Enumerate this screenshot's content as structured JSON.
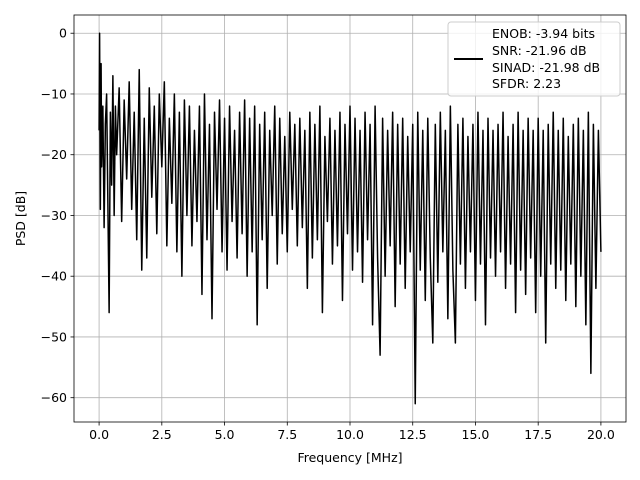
{
  "chart_data": {
    "type": "line",
    "title": "",
    "xlabel": "Frequency [MHz]",
    "ylabel": "PSD [dB]",
    "xlim": [
      -1.0,
      21.0
    ],
    "ylim": [
      -64.0,
      3.0
    ],
    "x_ticks": [
      0.0,
      2.5,
      5.0,
      7.5,
      10.0,
      12.5,
      15.0,
      17.5,
      20.0
    ],
    "x_tick_labels": [
      "0.0",
      "2.5",
      "5.0",
      "7.5",
      "10.0",
      "12.5",
      "15.0",
      "17.5",
      "20.0"
    ],
    "y_ticks": [
      0,
      -10,
      -20,
      -30,
      -40,
      -50,
      -60
    ],
    "y_tick_labels": [
      "0",
      "−10",
      "−20",
      "−30",
      "−40",
      "−50",
      "−60"
    ],
    "grid": true,
    "legend_position": "top-right",
    "series": [
      {
        "name": "ENOB: -3.94 bits\nSNR: -21.96 dB\nSINAD: -21.98 dB\nSFDR: 2.23",
        "legend_lines": [
          "ENOB: -3.94 bits",
          "SNR: -21.96 dB",
          "SINAD: -21.98 dB",
          "SFDR: 2.23"
        ],
        "color": "#000000",
        "points": [
          [
            0.0,
            -16
          ],
          [
            0.02,
            0.0
          ],
          [
            0.05,
            -29
          ],
          [
            0.08,
            -5
          ],
          [
            0.1,
            -22
          ],
          [
            0.15,
            -12
          ],
          [
            0.2,
            -32
          ],
          [
            0.25,
            -15
          ],
          [
            0.3,
            -10
          ],
          [
            0.35,
            -28
          ],
          [
            0.4,
            -46
          ],
          [
            0.45,
            -13
          ],
          [
            0.5,
            -25
          ],
          [
            0.55,
            -7
          ],
          [
            0.6,
            -30
          ],
          [
            0.65,
            -12
          ],
          [
            0.7,
            -20
          ],
          [
            0.8,
            -9
          ],
          [
            0.9,
            -31
          ],
          [
            1.0,
            -11
          ],
          [
            1.1,
            -24
          ],
          [
            1.2,
            -8
          ],
          [
            1.3,
            -29
          ],
          [
            1.4,
            -13
          ],
          [
            1.5,
            -34
          ],
          [
            1.6,
            -6
          ],
          [
            1.7,
            -39
          ],
          [
            1.8,
            -14
          ],
          [
            1.9,
            -37
          ],
          [
            2.0,
            -9
          ],
          [
            2.1,
            -27
          ],
          [
            2.2,
            -12
          ],
          [
            2.3,
            -33
          ],
          [
            2.4,
            -10
          ],
          [
            2.5,
            -22
          ],
          [
            2.6,
            -8
          ],
          [
            2.7,
            -35
          ],
          [
            2.8,
            -14
          ],
          [
            2.9,
            -28
          ],
          [
            3.0,
            -10
          ],
          [
            3.1,
            -36
          ],
          [
            3.2,
            -13
          ],
          [
            3.3,
            -40
          ],
          [
            3.4,
            -11
          ],
          [
            3.5,
            -30
          ],
          [
            3.6,
            -12
          ],
          [
            3.7,
            -35
          ],
          [
            3.8,
            -16
          ],
          [
            3.9,
            -31
          ],
          [
            4.0,
            -12
          ],
          [
            4.1,
            -43
          ],
          [
            4.2,
            -10
          ],
          [
            4.3,
            -34
          ],
          [
            4.4,
            -15
          ],
          [
            4.5,
            -47
          ],
          [
            4.6,
            -13
          ],
          [
            4.7,
            -29
          ],
          [
            4.8,
            -11
          ],
          [
            4.9,
            -36
          ],
          [
            5.0,
            -14
          ],
          [
            5.1,
            -39
          ],
          [
            5.2,
            -12
          ],
          [
            5.3,
            -31
          ],
          [
            5.4,
            -16
          ],
          [
            5.5,
            -37
          ],
          [
            5.6,
            -13
          ],
          [
            5.7,
            -33
          ],
          [
            5.8,
            -11
          ],
          [
            5.9,
            -40
          ],
          [
            6.0,
            -14
          ],
          [
            6.1,
            -36
          ],
          [
            6.2,
            -12
          ],
          [
            6.3,
            -48
          ],
          [
            6.4,
            -15
          ],
          [
            6.5,
            -34
          ],
          [
            6.6,
            -13
          ],
          [
            6.7,
            -42
          ],
          [
            6.8,
            -16
          ],
          [
            6.9,
            -30
          ],
          [
            7.0,
            -12
          ],
          [
            7.1,
            -38
          ],
          [
            7.2,
            -14
          ],
          [
            7.3,
            -33
          ],
          [
            7.4,
            -17
          ],
          [
            7.5,
            -36
          ],
          [
            7.6,
            -13
          ],
          [
            7.7,
            -29
          ],
          [
            7.8,
            -15
          ],
          [
            7.9,
            -35
          ],
          [
            8.0,
            -14
          ],
          [
            8.1,
            -32
          ],
          [
            8.2,
            -16
          ],
          [
            8.3,
            -42
          ],
          [
            8.4,
            -13
          ],
          [
            8.5,
            -37
          ],
          [
            8.6,
            -15
          ],
          [
            8.7,
            -34
          ],
          [
            8.8,
            -12
          ],
          [
            8.9,
            -46
          ],
          [
            9.0,
            -17
          ],
          [
            9.1,
            -31
          ],
          [
            9.2,
            -14
          ],
          [
            9.3,
            -38
          ],
          [
            9.4,
            -16
          ],
          [
            9.5,
            -35
          ],
          [
            9.6,
            -13
          ],
          [
            9.7,
            -44
          ],
          [
            9.8,
            -15
          ],
          [
            9.9,
            -33
          ],
          [
            10.0,
            -12
          ],
          [
            10.1,
            -39
          ],
          [
            10.2,
            -14
          ],
          [
            10.3,
            -36
          ],
          [
            10.4,
            -16
          ],
          [
            10.5,
            -41
          ],
          [
            10.6,
            -13
          ],
          [
            10.7,
            -34
          ],
          [
            10.8,
            -15
          ],
          [
            10.9,
            -48
          ],
          [
            11.0,
            -12
          ],
          [
            11.1,
            -37
          ],
          [
            11.2,
            -53
          ],
          [
            11.3,
            -14
          ],
          [
            11.4,
            -40
          ],
          [
            11.5,
            -16
          ],
          [
            11.6,
            -35
          ],
          [
            11.7,
            -13
          ],
          [
            11.8,
            -45
          ],
          [
            11.9,
            -15
          ],
          [
            12.0,
            -38
          ],
          [
            12.1,
            -14
          ],
          [
            12.2,
            -42
          ],
          [
            12.3,
            -17
          ],
          [
            12.4,
            -36
          ],
          [
            12.5,
            -15
          ],
          [
            12.6,
            -61
          ],
          [
            12.7,
            -13
          ],
          [
            12.8,
            -39
          ],
          [
            12.9,
            -16
          ],
          [
            13.0,
            -44
          ],
          [
            13.1,
            -14
          ],
          [
            13.2,
            -37
          ],
          [
            13.3,
            -51
          ],
          [
            13.4,
            -15
          ],
          [
            13.5,
            -41
          ],
          [
            13.6,
            -13
          ],
          [
            13.7,
            -36
          ],
          [
            13.8,
            -16
          ],
          [
            13.9,
            -47
          ],
          [
            14.0,
            -12
          ],
          [
            14.1,
            -39
          ],
          [
            14.2,
            -51
          ],
          [
            14.3,
            -15
          ],
          [
            14.4,
            -38
          ],
          [
            14.5,
            -14
          ],
          [
            14.6,
            -42
          ],
          [
            14.7,
            -17
          ],
          [
            14.8,
            -36
          ],
          [
            14.9,
            -15
          ],
          [
            15.0,
            -44
          ],
          [
            15.1,
            -13
          ],
          [
            15.2,
            -38
          ],
          [
            15.3,
            -16
          ],
          [
            15.4,
            -48
          ],
          [
            15.5,
            -14
          ],
          [
            15.6,
            -37
          ],
          [
            15.7,
            -16
          ],
          [
            15.8,
            -40
          ],
          [
            15.9,
            -15
          ],
          [
            16.0,
            -36
          ],
          [
            16.1,
            -13
          ],
          [
            16.2,
            -42
          ],
          [
            16.3,
            -17
          ],
          [
            16.4,
            -38
          ],
          [
            16.5,
            -15
          ],
          [
            16.6,
            -46
          ],
          [
            16.7,
            -13
          ],
          [
            16.8,
            -39
          ],
          [
            16.9,
            -16
          ],
          [
            17.0,
            -43
          ],
          [
            17.1,
            -14
          ],
          [
            17.2,
            -37
          ],
          [
            17.3,
            -16
          ],
          [
            17.4,
            -46
          ],
          [
            17.5,
            -14
          ],
          [
            17.6,
            -40
          ],
          [
            17.7,
            -16
          ],
          [
            17.8,
            -51
          ],
          [
            17.9,
            -15
          ],
          [
            18.0,
            -38
          ],
          [
            18.1,
            -13
          ],
          [
            18.2,
            -42
          ],
          [
            18.3,
            -16
          ],
          [
            18.4,
            -39
          ],
          [
            18.5,
            -14
          ],
          [
            18.6,
            -44
          ],
          [
            18.7,
            -17
          ],
          [
            18.8,
            -38
          ],
          [
            18.9,
            -15
          ],
          [
            19.0,
            -45
          ],
          [
            19.1,
            -14
          ],
          [
            19.2,
            -40
          ],
          [
            19.3,
            -16
          ],
          [
            19.4,
            -48
          ],
          [
            19.5,
            -13
          ],
          [
            19.6,
            -56
          ],
          [
            19.7,
            -15
          ],
          [
            19.8,
            -42
          ],
          [
            19.9,
            -16
          ],
          [
            20.0,
            -36
          ]
        ]
      }
    ]
  }
}
